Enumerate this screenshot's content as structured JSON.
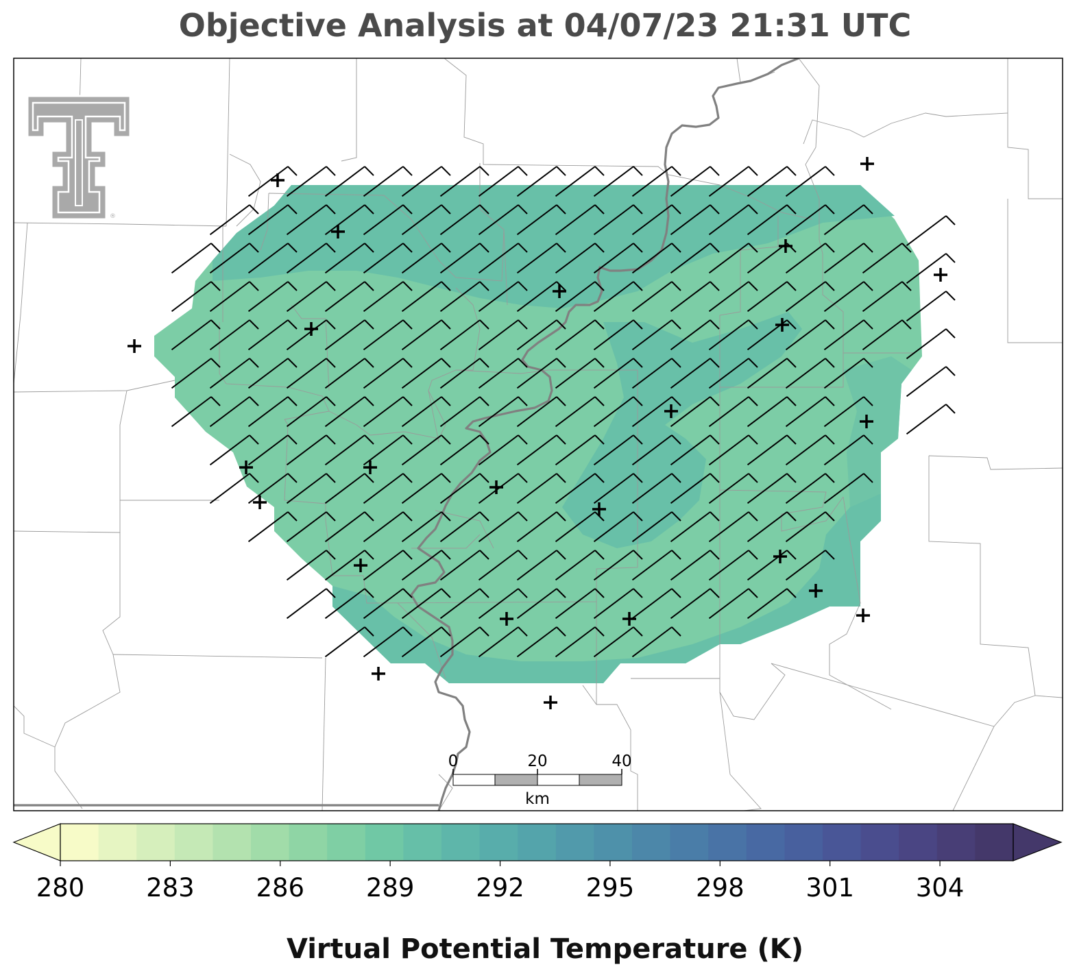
{
  "title": "Objective Analysis at 04/07/23 21:31 UTC",
  "logo": {
    "name": "texas-tech-double-t-logo",
    "registered_mark": "®"
  },
  "colorbar": {
    "label": "Virtual Potential Temperature (K)",
    "min": 280,
    "max": 306,
    "step": 1,
    "ticks": [
      "280",
      "283",
      "286",
      "289",
      "292",
      "295",
      "298",
      "301",
      "304"
    ],
    "extend": "both",
    "colormap": "crest",
    "colors": [
      "#f7fbc8",
      "#e6f5c2",
      "#d6efbc",
      "#c5e9b6",
      "#b3e2af",
      "#a1dca9",
      "#8fd5a5",
      "#7fcfa4",
      "#70c8a5",
      "#66bfa8",
      "#5eb6aa",
      "#58adab",
      "#54a4ab",
      "#519aab",
      "#4e91aa",
      "#4c87a9",
      "#4a7da8",
      "#4973a6",
      "#4869a3",
      "#48609e",
      "#495697",
      "#4a4d8e",
      "#4a4583",
      "#483e76",
      "#44386a"
    ]
  },
  "scale_bar": {
    "ticks": [
      "0",
      "20",
      "40"
    ],
    "unit": "km"
  },
  "analysis": {
    "field": "Virtual Potential Temperature",
    "unit": "K",
    "range": [
      288,
      291
    ],
    "wind_direction": "southwest",
    "station_count": 26
  }
}
